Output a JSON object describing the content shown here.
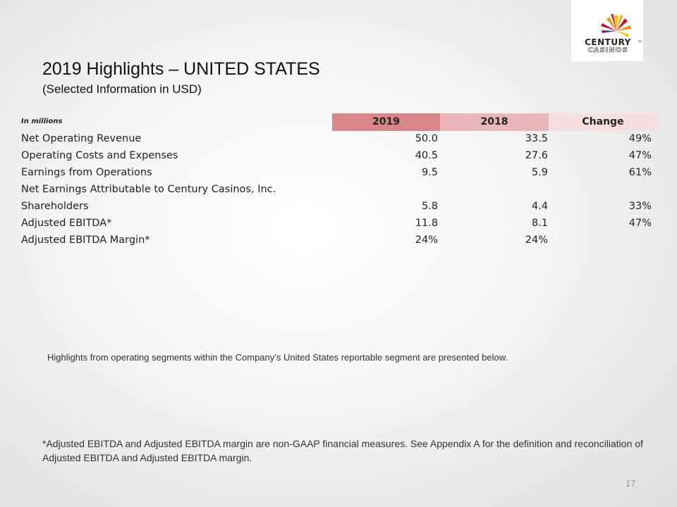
{
  "logo": {
    "line1": "CENTURY",
    "tm": "TM",
    "line2": "CASINOS",
    "colors": {
      "red": "#c8102e",
      "orange": "#f39200",
      "yellow": "#f6c800",
      "purple": "#5b2c83"
    }
  },
  "title": "2019 Highlights – UNITED STATES",
  "subtitle": "(Selected Information in USD)",
  "table": {
    "units_label": "In millions",
    "headers": [
      "2019",
      "2018",
      "Change"
    ],
    "header_colors": [
      "#d9868a",
      "#eab7b9",
      "#f7dfe0"
    ],
    "rows": [
      {
        "label": "Net Operating Revenue",
        "y2019": "50.0",
        "y2018": "33.5",
        "change": "49%"
      },
      {
        "label": "Operating Costs and Expenses",
        "y2019": "40.5",
        "y2018": "27.6",
        "change": "47%"
      },
      {
        "label": "Earnings from Operations",
        "y2019": "9.5",
        "y2018": "5.9",
        "change": "61%"
      },
      {
        "label": "Net Earnings Attributable to Century Casinos, Inc.",
        "y2019": "",
        "y2018": "",
        "change": ""
      },
      {
        "label": "Shareholders",
        "y2019": "5.8",
        "y2018": "4.4",
        "change": "33%"
      },
      {
        "label": "Adjusted EBITDA*",
        "y2019": "11.8",
        "y2018": "8.1",
        "change": "47%"
      },
      {
        "label": "Adjusted EBITDA Margin*",
        "y2019": "24%",
        "y2018": "24%",
        "change": ""
      }
    ]
  },
  "note": "Highlights from operating segments within the Company’s United States reportable segment are presented below.",
  "footnote": "*Adjusted EBITDA and Adjusted EBITDA margin are non-GAAP financial measures. See Appendix A for the definition and reconciliation of Adjusted EBITDA and Adjusted EBITDA margin.",
  "page_number": "17"
}
